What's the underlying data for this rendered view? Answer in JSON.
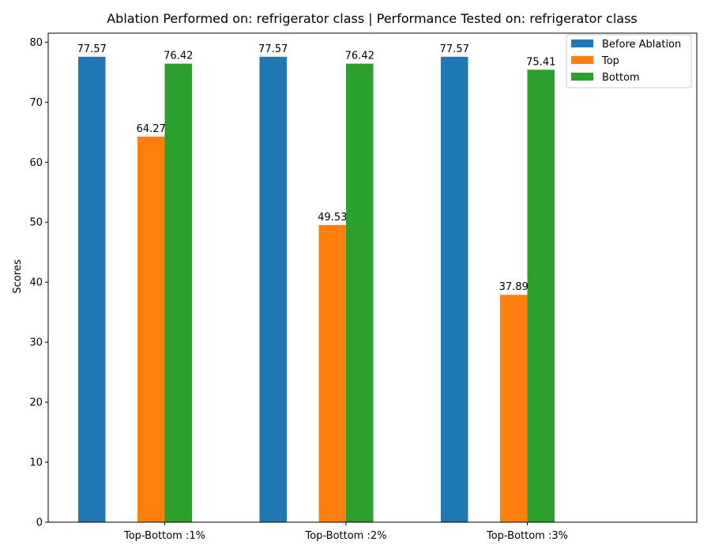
{
  "chart_data": {
    "type": "bar",
    "title": "Ablation Performed on: refrigerator class | Performance Tested on: refrigerator class",
    "xlabel": "",
    "ylabel": "Scores",
    "ylim": [
      0,
      81.5
    ],
    "yticks": [
      0,
      10,
      20,
      30,
      40,
      50,
      60,
      70,
      80
    ],
    "categories": [
      "Top-Bottom :1%",
      "Top-Bottom :2%",
      "Top-Bottom :3%"
    ],
    "series": [
      {
        "name": "Before Ablation",
        "color": "#1f77b4",
        "values": [
          77.57,
          77.57,
          77.57
        ]
      },
      {
        "name": "Top",
        "color": "#ff7f0e",
        "values": [
          64.27,
          49.53,
          37.89
        ]
      },
      {
        "name": "Bottom",
        "color": "#2ca02c",
        "values": [
          76.42,
          76.42,
          75.41
        ]
      }
    ],
    "data_labels": [
      [
        "77.57",
        "77.57",
        "77.57"
      ],
      [
        "64.27",
        "49.53",
        "37.89"
      ],
      [
        "76.42",
        "76.42",
        "75.41"
      ]
    ],
    "legend_position": "top-right",
    "grid": false
  }
}
